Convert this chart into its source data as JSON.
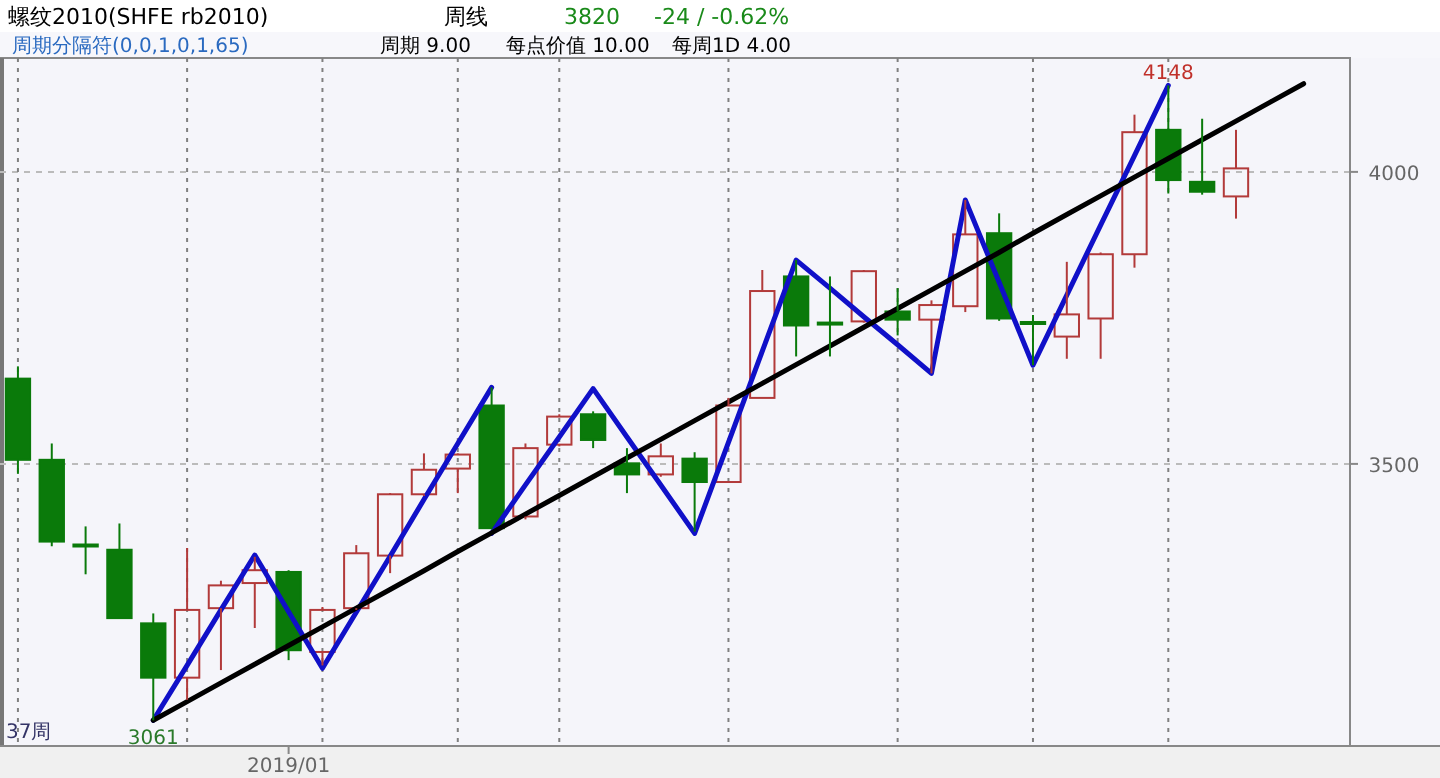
{
  "chart_data": {
    "type": "candlestick",
    "title": "螺纹2010(SHFE rb2010)",
    "annotations": [
      "周线",
      "3820",
      "-24 / -0.62%",
      "周期分隔符(0,0,1,0,1,65)",
      "周期 9.00",
      "每点价值 10.00",
      "每周1D 4.00",
      "37周",
      {
        "text": "3061",
        "y": 3061
      },
      {
        "text": "4148",
        "y": 4148
      }
    ],
    "categories": [
      null,
      null,
      null,
      null,
      null,
      null,
      null,
      null,
      "2019/01",
      null,
      null,
      null,
      null,
      null,
      null,
      null,
      null,
      null,
      null,
      null,
      null,
      null,
      null,
      null,
      null,
      null,
      null,
      null,
      null,
      null,
      null,
      null,
      null,
      null,
      null,
      null,
      null,
      null,
      null
    ],
    "ohlc": [
      [
        3646,
        3667,
        3483,
        3507
      ],
      [
        3507,
        3535,
        3359,
        3367
      ],
      [
        3362,
        3393,
        3311,
        3360
      ],
      [
        3353,
        3398,
        3236,
        3236
      ],
      [
        3227,
        3244,
        3061,
        3134
      ],
      [
        3134,
        3356,
        3096,
        3250
      ],
      [
        3253,
        3300,
        3147,
        3292
      ],
      [
        3296,
        3341,
        3219,
        3318
      ],
      [
        3315,
        3318,
        3164,
        3181
      ],
      [
        3178,
        3255,
        3155,
        3250
      ],
      [
        3253,
        3361,
        3250,
        3347
      ],
      [
        3343,
        3450,
        3313,
        3448
      ],
      [
        3448,
        3518,
        3445,
        3490
      ],
      [
        3492,
        3518,
        3450,
        3516
      ],
      [
        3600,
        3631,
        3388,
        3390
      ],
      [
        3410,
        3535,
        3405,
        3527
      ],
      [
        3533,
        3585,
        3530,
        3581
      ],
      [
        3585,
        3590,
        3527,
        3541
      ],
      [
        3501,
        3527,
        3450,
        3482
      ],
      [
        3482,
        3535,
        3478,
        3513
      ],
      [
        3509,
        3520,
        3384,
        3469
      ],
      [
        3469,
        3613,
        3469,
        3600
      ],
      [
        3613,
        3832,
        3613,
        3796
      ],
      [
        3821,
        3849,
        3684,
        3737
      ],
      [
        3742,
        3821,
        3684,
        3740
      ],
      [
        3744,
        3832,
        3742,
        3830
      ],
      [
        3761,
        3801,
        3720,
        3747
      ],
      [
        3747,
        3780,
        3655,
        3772
      ],
      [
        3770,
        3952,
        3760,
        3893
      ],
      [
        3895,
        3929,
        3745,
        3749
      ],
      [
        3743,
        3755,
        3669,
        3741
      ],
      [
        3718,
        3846,
        3680,
        3756
      ],
      [
        3749,
        3862,
        3680,
        3859
      ],
      [
        3859,
        4098,
        3836,
        4068
      ],
      [
        4072,
        4148,
        3963,
        3986
      ],
      [
        3983,
        4091,
        3961,
        3966
      ],
      [
        3958,
        4072,
        3920,
        4006
      ],
      null,
      null
    ],
    "series": [
      {
        "type": "line",
        "color": "#1010c8",
        "values": [
          null,
          null,
          null,
          null,
          3061,
          3155,
          3250,
          3344,
          3247,
          3150,
          3246,
          3342,
          3439,
          3535,
          3631,
          null,
          null,
          null,
          null,
          null,
          null,
          null,
          null,
          null,
          null,
          null,
          null,
          null,
          null,
          null,
          null,
          null,
          null,
          null,
          null,
          null,
          null,
          null,
          null
        ]
      },
      {
        "type": "line",
        "color": "#1010c8",
        "values": [
          null,
          null,
          null,
          null,
          null,
          null,
          null,
          null,
          null,
          null,
          null,
          null,
          null,
          null,
          3381,
          3464,
          3546,
          3629,
          3546,
          3464,
          3381,
          3537,
          3693,
          3849,
          3801,
          3752,
          3704,
          3655,
          3952,
          3811,
          3669,
          3789,
          3909,
          4028,
          4148,
          null,
          null,
          null,
          null
        ]
      },
      {
        "type": "line",
        "color": "#000000",
        "values": [
          null,
          null,
          null,
          null,
          3061,
          3093,
          3125,
          3157,
          3189,
          3221,
          3253,
          3285,
          3317,
          3350,
          3382,
          3414,
          3446,
          3478,
          3510,
          3542,
          3574,
          3606,
          3638,
          3670,
          3702,
          3734,
          3766,
          3798,
          3830,
          3862,
          3895,
          3927,
          3959,
          3991,
          4023,
          4055,
          4087,
          4119,
          4151
        ]
      }
    ],
    "ylim": [
      3017,
      4195
    ],
    "yticks": [
      3500,
      4000
    ],
    "grid": true
  }
}
